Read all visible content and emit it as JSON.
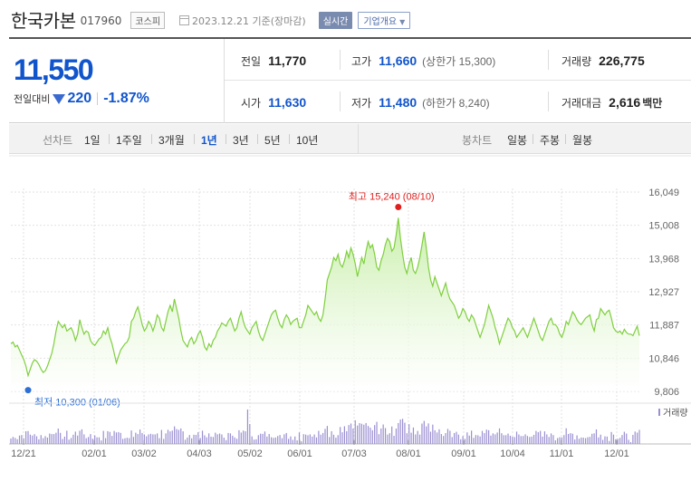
{
  "header": {
    "name": "한국카본",
    "code": "017960",
    "market": "코스피",
    "date_text": "2023.12.21 기준(장마감)",
    "realtime_label": "실시간",
    "corp_info_label": "기업개요"
  },
  "price": {
    "current": "11,550",
    "change_label": "전일대비",
    "change": "220",
    "change_pct": "-1.87%"
  },
  "stats": {
    "prev_close_label": "전일",
    "prev_close": "11,770",
    "high_label": "고가",
    "high": "11,660",
    "upper_limit": "(상한가 15,300)",
    "volume_label": "거래량",
    "volume": "226,775",
    "open_label": "시가",
    "open": "11,630",
    "low_label": "저가",
    "low": "11,480",
    "lower_limit": "(하한가 8,240)",
    "amount_label": "거래대금",
    "amount": "2,616",
    "amount_unit": "백만"
  },
  "period_bar": {
    "line_label": "선차트",
    "periods": [
      "1일",
      "1주일",
      "3개월",
      "1년",
      "3년",
      "5년",
      "10년"
    ],
    "selected": "1년",
    "candle_label": "봉차트",
    "candles": [
      "일봉",
      "주봉",
      "월봉"
    ]
  },
  "chart_data": {
    "type": "area",
    "y_ticks": [
      "16,049",
      "15,008",
      "13,968",
      "12,927",
      "11,887",
      "10,846",
      "9,806"
    ],
    "ylim": [
      9806,
      16049
    ],
    "x_ticks": [
      "12/21",
      "02/01",
      "03/02",
      "04/03",
      "05/02",
      "06/01",
      "07/03",
      "08/01",
      "09/01",
      "10/04",
      "11/01",
      "12/01"
    ],
    "max_label": "최고 15,240 (08/10)",
    "min_label": "최저 10,300 (01/06)",
    "volume_label": "거래량",
    "colors": {
      "line": "#7fcf3f",
      "fill_top": "#c9efab",
      "max": "#e0201f",
      "min": "#2d6fd6",
      "volume": "#9b8fd1"
    },
    "values": [
      11300,
      11350,
      11200,
      11250,
      11100,
      10950,
      10800,
      10600,
      10300,
      10500,
      10700,
      10800,
      10750,
      10650,
      10500,
      10400,
      10450,
      10600,
      10800,
      11000,
      11300,
      11700,
      12000,
      11900,
      11800,
      11900,
      11700,
      11750,
      11800,
      11650,
      11400,
      11600,
      12050,
      11800,
      11600,
      11700,
      11650,
      11400,
      11300,
      11250,
      11350,
      11450,
      11500,
      11700,
      11600,
      11800,
      11500,
      11300,
      11000,
      10700,
      10900,
      11100,
      11200,
      11300,
      11350,
      11500,
      12000,
      12100,
      12300,
      12450,
      12200,
      11900,
      11700,
      11800,
      12000,
      11900,
      11700,
      11900,
      12200,
      12100,
      11800,
      11700,
      12000,
      12300,
      12500,
      12300,
      12700,
      12400,
      12100,
      11700,
      11400,
      11300,
      11200,
      11400,
      11500,
      11300,
      11400,
      11600,
      11700,
      11500,
      11200,
      11100,
      11300,
      11200,
      11400,
      11500,
      11700,
      11800,
      11950,
      11900,
      11850,
      12000,
      12100,
      11900,
      11700,
      11800,
      12100,
      12300,
      12000,
      11800,
      11700,
      11600,
      11800,
      11900,
      12000,
      11700,
      11500,
      11400,
      11600,
      11800,
      12000,
      12200,
      12300,
      12350,
      12100,
      11900,
      11800,
      12050,
      12200,
      12100,
      11900,
      12000,
      12050,
      12100,
      11800,
      11800,
      12000,
      12200,
      12500,
      12400,
      12300,
      12200,
      12300,
      12100,
      12000,
      12200,
      12700,
      13300,
      13500,
      13700,
      14000,
      13900,
      14100,
      13800,
      13700,
      13900,
      14200,
      14000,
      14300,
      14100,
      13800,
      13400,
      13700,
      14000,
      13800,
      14200,
      14500,
      14300,
      14400,
      14100,
      13700,
      13600,
      13900,
      14100,
      14400,
      14600,
      14500,
      14200,
      14300,
      14700,
      15240,
      14600,
      14100,
      13700,
      13500,
      13800,
      14000,
      13600,
      13500,
      13700,
      14000,
      14400,
      14800,
      14300,
      13700,
      13300,
      13100,
      13400,
      13200,
      13000,
      12800,
      13000,
      13200,
      12900,
      12700,
      12600,
      12500,
      12300,
      12100,
      12200,
      12400,
      12300,
      12100,
      12000,
      12200,
      12100,
      11900,
      11700,
      11500,
      11700,
      11900,
      12200,
      12500,
      12300,
      12100,
      11800,
      11600,
      11300,
      11500,
      11700,
      11900,
      12100,
      12000,
      11800,
      11700,
      11500,
      11600,
      11700,
      11800,
      11650,
      11500,
      11700,
      11900,
      12100,
      11900,
      11700,
      11500,
      11400,
      11600,
      11800,
      12000,
      12100,
      11900,
      11900,
      11800,
      11600,
      11500,
      11700,
      12000,
      11900,
      12100,
      12300,
      12200,
      12050,
      11950,
      11900,
      12000,
      12100,
      12150,
      12200,
      11900,
      11700,
      12050,
      12100,
      12400,
      12300,
      12200,
      12300,
      12350,
      12100,
      11800,
      11700,
      11650,
      11700,
      11600,
      11750,
      11650,
      11600,
      11600,
      11550,
      11700,
      11850,
      11550
    ]
  }
}
